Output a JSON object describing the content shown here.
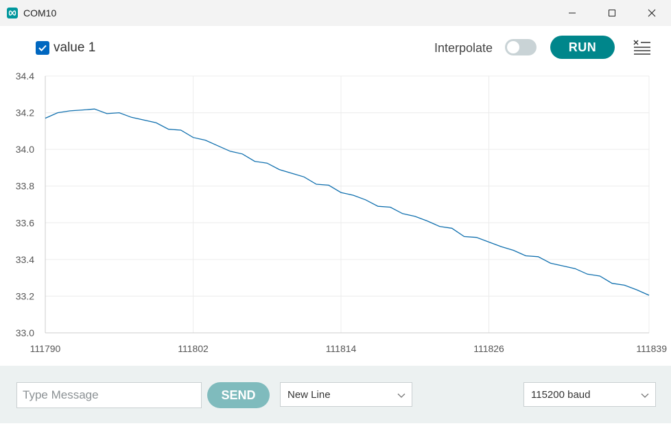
{
  "window": {
    "title": "COM10",
    "accent": "#00979d"
  },
  "toolbar": {
    "series_label": "value 1",
    "series_checked": true,
    "interpolate_label": "Interpolate",
    "interpolate_on": false,
    "run_label": "RUN",
    "menu_icon": "clear-menu-icon"
  },
  "chart_data": {
    "type": "line",
    "title": "",
    "xlabel": "",
    "ylabel": "",
    "xlim": [
      111790,
      111839
    ],
    "ylim": [
      33.0,
      34.4
    ],
    "x_ticks": [
      "111790",
      "111802",
      "111814",
      "111826",
      "111839"
    ],
    "y_ticks": [
      "34.4",
      "34.2",
      "34.0",
      "33.8",
      "33.6",
      "33.4",
      "33.2",
      "33.0"
    ],
    "grid": true,
    "series": [
      {
        "color": "#0f6fae",
        "x": [
          111790,
          111791,
          111792,
          111793,
          111794,
          111795,
          111796,
          111797,
          111798,
          111799,
          111800,
          111801,
          111802,
          111803,
          111804,
          111805,
          111806,
          111807,
          111808,
          111809,
          111810,
          111811,
          111812,
          111813,
          111814,
          111815,
          111816,
          111817,
          111818,
          111819,
          111820,
          111821,
          111822,
          111823,
          111824,
          111825,
          111826,
          111827,
          111828,
          111829,
          111830,
          111831,
          111832,
          111833,
          111834,
          111835,
          111836,
          111837,
          111838,
          111839
        ],
        "values": [
          34.17,
          34.2,
          34.21,
          34.215,
          34.22,
          34.195,
          34.2,
          34.175,
          34.16,
          34.145,
          34.11,
          34.105,
          34.065,
          34.05,
          34.02,
          33.99,
          33.975,
          33.935,
          33.925,
          33.89,
          33.87,
          33.85,
          33.81,
          33.805,
          33.765,
          33.75,
          33.725,
          33.69,
          33.685,
          33.65,
          33.635,
          33.61,
          33.58,
          33.57,
          33.525,
          33.52,
          33.495,
          33.47,
          33.45,
          33.42,
          33.415,
          33.38,
          33.365,
          33.35,
          33.32,
          33.31,
          33.27,
          33.26,
          33.235,
          33.205
        ]
      }
    ]
  },
  "footer": {
    "message_placeholder": "Type Message",
    "message_value": "",
    "send_label": "SEND",
    "line_ending": "New Line",
    "baud_rate": "115200 baud"
  }
}
